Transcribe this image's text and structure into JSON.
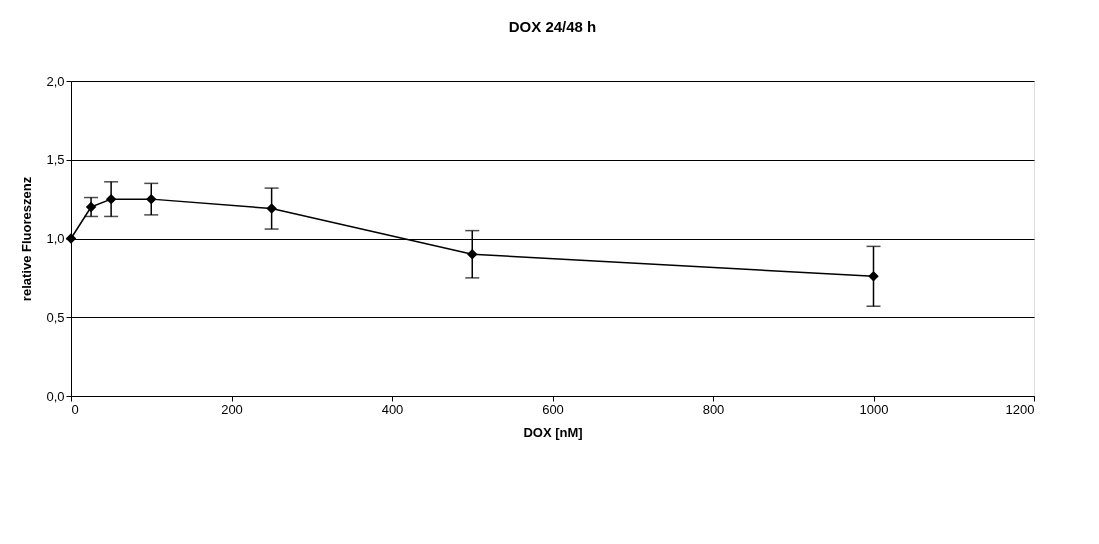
{
  "chart_data": {
    "type": "line",
    "title": "DOX 24/48 h",
    "xlabel": "DOX [nM]",
    "ylabel": "relative Fluoreszenz",
    "x": [
      0,
      25,
      50,
      100,
      250,
      500,
      1000
    ],
    "series": [
      {
        "color": "#000000",
        "values": [
          1.0,
          1.2,
          1.25,
          1.25,
          1.19,
          0.9,
          0.76
        ],
        "errors": [
          null,
          0.06,
          0.11,
          0.1,
          0.13,
          0.15,
          0.19
        ]
      }
    ],
    "xlim": [
      0,
      1200
    ],
    "xticks": [
      0,
      200,
      400,
      600,
      800,
      1000,
      1200
    ],
    "ylim": [
      0,
      2
    ],
    "yticks": [
      {
        "value": 0,
        "label": "0,0"
      },
      {
        "value": 0.5,
        "label": "0,5"
      },
      {
        "value": 1,
        "label": "1,0"
      },
      {
        "value": 1.5,
        "label": "1,5"
      },
      {
        "value": 2,
        "label": "2,0"
      }
    ],
    "grid": "y",
    "marker": "diamond",
    "line_style": "solid"
  }
}
